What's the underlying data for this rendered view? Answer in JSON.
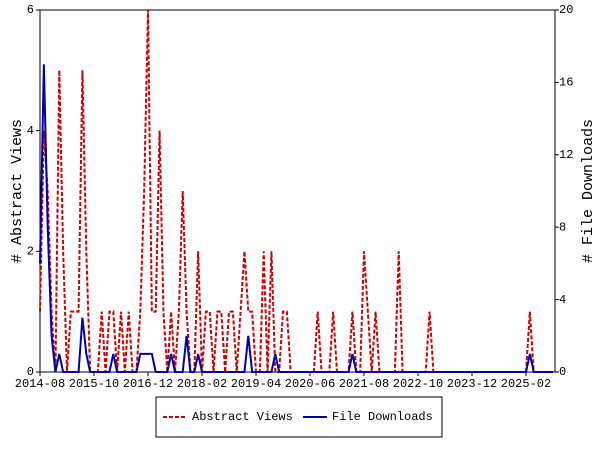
{
  "chart_data": {
    "type": "line",
    "categories": [
      "2014-08",
      null,
      null,
      null,
      null,
      null,
      null,
      null,
      null,
      null,
      null,
      null,
      null,
      null,
      "2015-10",
      null,
      null,
      null,
      null,
      null,
      null,
      null,
      null,
      null,
      null,
      null,
      null,
      null,
      "2016-12",
      null,
      null,
      null,
      null,
      null,
      null,
      null,
      null,
      null,
      null,
      null,
      null,
      null,
      "2018-02",
      null,
      null,
      null,
      null,
      null,
      null,
      null,
      null,
      null,
      null,
      null,
      null,
      null,
      "2019-04",
      null,
      null,
      null,
      null,
      null,
      null,
      null,
      null,
      null,
      null,
      null,
      null,
      null,
      "2020-06",
      null,
      null,
      null,
      null,
      null,
      null,
      null,
      null,
      null,
      null,
      null,
      null,
      null,
      "2021-08",
      null,
      null,
      null,
      null,
      null,
      null,
      null,
      null,
      null,
      null,
      null,
      null,
      null,
      "2022-10",
      null,
      null,
      null,
      null,
      null,
      null,
      null,
      null,
      null,
      null,
      null,
      null,
      null,
      "2023-12",
      null,
      null,
      null,
      null,
      null,
      null,
      null,
      null,
      null,
      null,
      null,
      null,
      null,
      "2025-02",
      null,
      null,
      null,
      null,
      null,
      null,
      null
    ],
    "ylabel": "# Abstract Views",
    "y2label": "# File Downloads",
    "ylim": [
      0,
      6
    ],
    "yticks": [
      0,
      2,
      4,
      6
    ],
    "y2lim": [
      0,
      20
    ],
    "y2ticks": [
      0,
      4,
      8,
      12,
      16,
      20
    ],
    "series": [
      {
        "name": "Abstract Views",
        "color": "#cc0000",
        "dashed": true,
        "values": [
          1,
          4,
          3,
          1,
          0,
          5,
          2,
          0,
          1,
          1,
          1,
          5,
          2,
          0,
          0,
          0,
          1,
          0,
          1,
          1,
          0,
          1,
          0,
          1,
          0,
          0,
          1,
          3,
          6,
          1,
          1,
          4,
          1,
          0,
          1,
          0,
          1,
          3,
          1,
          0,
          0,
          2,
          0,
          1,
          1,
          0,
          1,
          1,
          0,
          1,
          1,
          0,
          1,
          2,
          1,
          1,
          0,
          0,
          2,
          0,
          2,
          0,
          0,
          1,
          1,
          0,
          0,
          0,
          0,
          0,
          0,
          0,
          1,
          0,
          0,
          0,
          1,
          0,
          0,
          0,
          0,
          1,
          0,
          0,
          2,
          1,
          0,
          1,
          0,
          0,
          0,
          0,
          0,
          2,
          0,
          0,
          0,
          0,
          0,
          0,
          0,
          1,
          0,
          0,
          0,
          0,
          0,
          0,
          0,
          0,
          0,
          0,
          0,
          0,
          0,
          0,
          0,
          0,
          0,
          0,
          0,
          0,
          0,
          0,
          0,
          0,
          0,
          1,
          0,
          0,
          0,
          0,
          0,
          0
        ]
      },
      {
        "name": "File Downloads",
        "color": "#0000aa",
        "dashed": false,
        "axis": "y2",
        "values": [
          6,
          17,
          8,
          2,
          0,
          1,
          0,
          0,
          0,
          0,
          0,
          3,
          1,
          0,
          0,
          0,
          0,
          0,
          0,
          1,
          0,
          0,
          0,
          0,
          0,
          0,
          1,
          1,
          1,
          1,
          0,
          0,
          0,
          0,
          1,
          0,
          0,
          0,
          2,
          0,
          0,
          1,
          0,
          0,
          0,
          0,
          0,
          0,
          0,
          0,
          0,
          0,
          0,
          0,
          2,
          0,
          0,
          0,
          0,
          0,
          0,
          1,
          0,
          0,
          0,
          0,
          0,
          0,
          0,
          0,
          0,
          0,
          0,
          0,
          0,
          0,
          0,
          0,
          0,
          0,
          0,
          1,
          0,
          0,
          0,
          0,
          0,
          0,
          0,
          0,
          0,
          0,
          0,
          0,
          0,
          0,
          0,
          0,
          0,
          0,
          0,
          0,
          0,
          0,
          0,
          0,
          0,
          0,
          0,
          0,
          0,
          0,
          0,
          0,
          0,
          0,
          0,
          0,
          0,
          0,
          0,
          0,
          0,
          0,
          0,
          0,
          0,
          1,
          0,
          0,
          0,
          0,
          0,
          0
        ]
      }
    ]
  }
}
